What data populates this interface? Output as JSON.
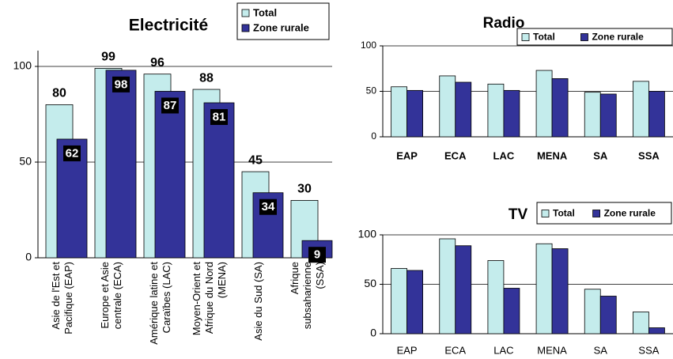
{
  "chart_data": [
    {
      "type": "bar",
      "title": "Electricité",
      "categories": [
        "Asie de l'Est et Pacifique (EAP)",
        "Europe et Asie centrale (ECA)",
        "Amérique latine et Caraïbes (LAC)",
        "Moyen-Orient et Afrique du Nord (MENA)",
        "Asie du Sud (SA)",
        "Afrique subsaharienne (SSA)"
      ],
      "series": [
        {
          "name": "Total",
          "color": "#c4ecec",
          "values": [
            80,
            99,
            96,
            88,
            45,
            30
          ]
        },
        {
          "name": "Zone rurale",
          "color": "#333399",
          "values": [
            62,
            98,
            87,
            81,
            34,
            9
          ]
        }
      ],
      "ylim": [
        0,
        100
      ],
      "yticks": [
        0,
        50,
        100
      ],
      "grid": true,
      "legend": "upper right"
    },
    {
      "type": "bar",
      "title": "Radio",
      "categories": [
        "EAP",
        "ECA",
        "LAC",
        "MENA",
        "SA",
        "SSA"
      ],
      "series": [
        {
          "name": "Total",
          "color": "#c4ecec",
          "values": [
            55,
            67,
            58,
            73,
            49,
            61
          ]
        },
        {
          "name": "Zone rurale",
          "color": "#333399",
          "values": [
            51,
            60,
            51,
            64,
            47,
            50
          ]
        }
      ],
      "ylim": [
        0,
        100
      ],
      "yticks": [
        0,
        50,
        100
      ],
      "grid": true,
      "legend": "upper right"
    },
    {
      "type": "bar",
      "title": "TV",
      "categories": [
        "EAP",
        "ECA",
        "LAC",
        "MENA",
        "SA",
        "SSA"
      ],
      "series": [
        {
          "name": "Total",
          "color": "#c4ecec",
          "values": [
            66,
            96,
            74,
            91,
            45,
            22
          ]
        },
        {
          "name": "Zone rurale",
          "color": "#333399",
          "values": [
            64,
            89,
            46,
            86,
            38,
            6
          ]
        }
      ],
      "ylim": [
        0,
        100
      ],
      "yticks": [
        0,
        50,
        100
      ],
      "grid": true,
      "legend": "upper right"
    }
  ]
}
